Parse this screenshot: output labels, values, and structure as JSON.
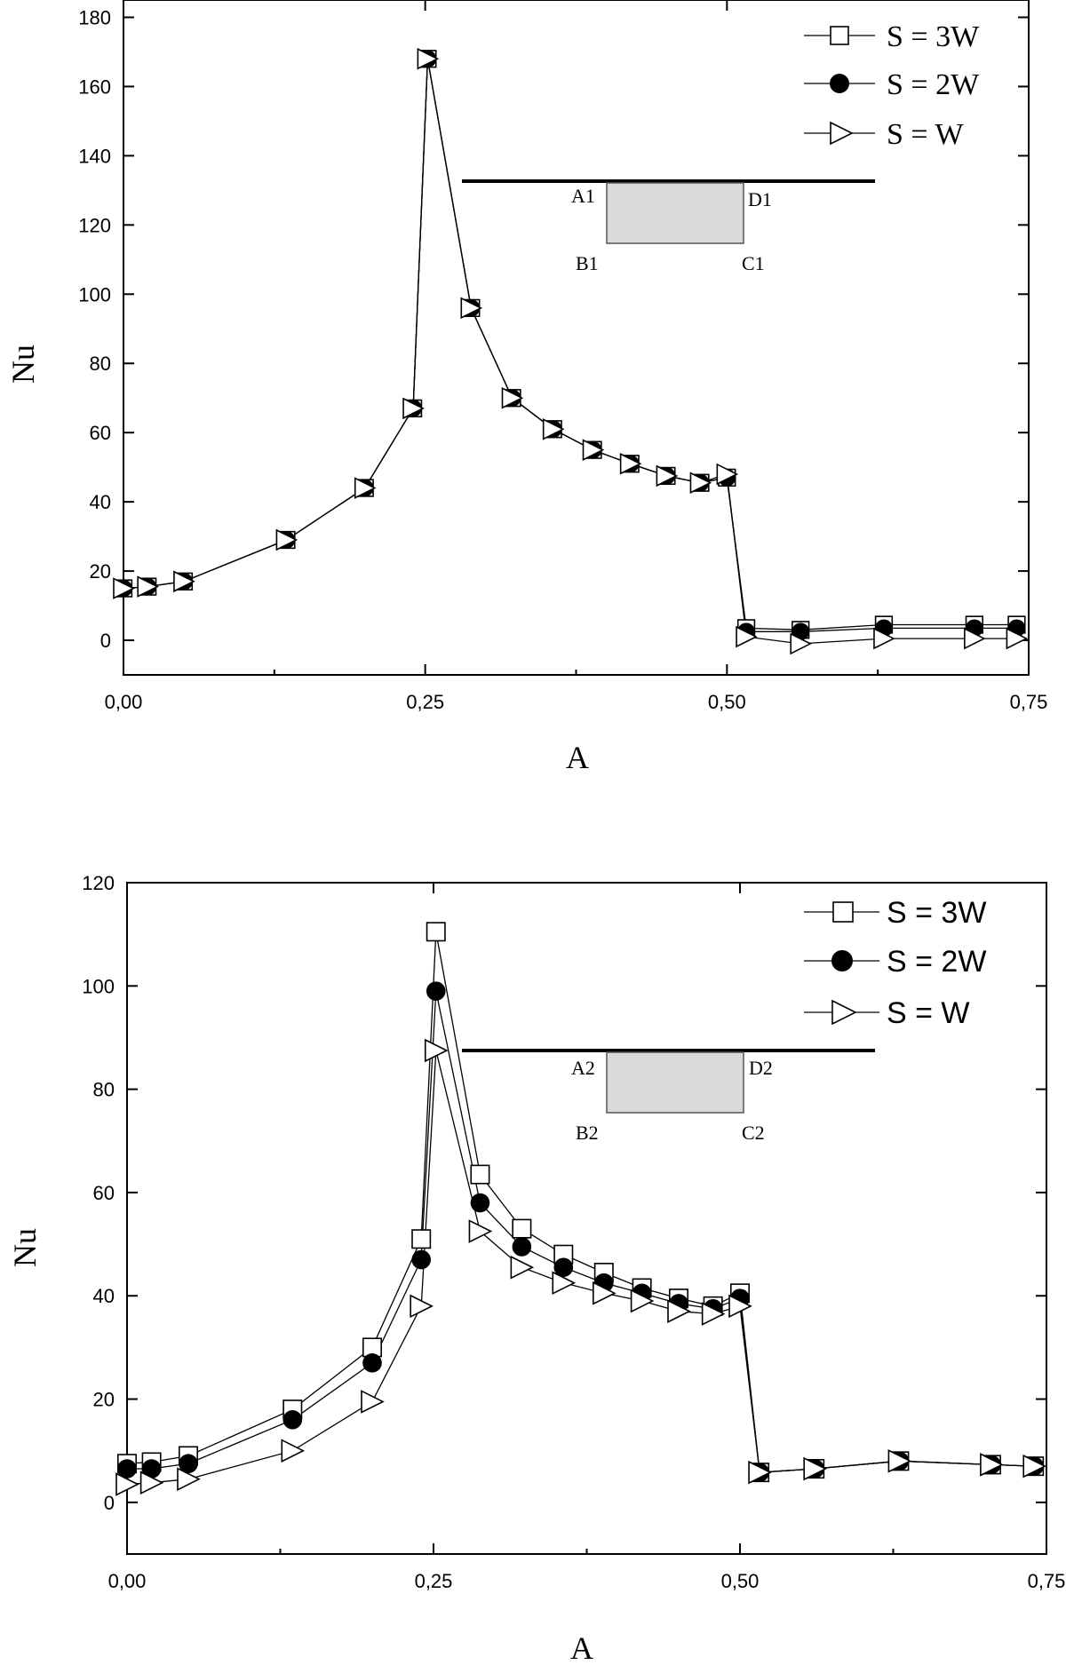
{
  "chart_data": [
    {
      "type": "line",
      "title": "",
      "xlabel": "A",
      "ylabel": "Nu",
      "xlim": [
        0.0,
        0.75
      ],
      "ylim": [
        -10,
        185
      ],
      "xticks": [
        0.0,
        0.25,
        0.5,
        0.75
      ],
      "xtick_labels": [
        "0,00",
        "0,25",
        "0,50",
        "0,75"
      ],
      "yticks": [
        0,
        20,
        40,
        60,
        80,
        100,
        120,
        140,
        160,
        180
      ],
      "ytick_labels": [
        "0",
        "20",
        "40",
        "60",
        "80",
        "100",
        "120",
        "140",
        "160",
        "180"
      ],
      "legend_position": "top-right",
      "inset": {
        "labels": [
          "A1",
          "D1",
          "B1",
          "C1"
        ]
      },
      "series": [
        {
          "name": "S = 3W",
          "marker": "square-open",
          "points": [
            [
              0.0,
              15
            ],
            [
              0.02,
              15.5
            ],
            [
              0.05,
              17
            ],
            [
              0.135,
              29
            ],
            [
              0.2,
              44
            ],
            [
              0.24,
              67
            ],
            [
              0.252,
              168
            ],
            [
              0.288,
              96
            ],
            [
              0.322,
              70
            ],
            [
              0.356,
              61
            ],
            [
              0.389,
              55
            ],
            [
              0.42,
              51
            ],
            [
              0.45,
              47.5
            ],
            [
              0.478,
              45.5
            ],
            [
              0.5,
              47
            ],
            [
              0.516,
              3.5
            ],
            [
              0.561,
              3
            ],
            [
              0.63,
              4.5
            ],
            [
              0.705,
              4.5
            ],
            [
              0.74,
              4.5
            ]
          ]
        },
        {
          "name": "S = 2W",
          "marker": "circle-filled",
          "points": [
            [
              0.0,
              15
            ],
            [
              0.02,
              15.5
            ],
            [
              0.05,
              17
            ],
            [
              0.135,
              29
            ],
            [
              0.2,
              44
            ],
            [
              0.24,
              67
            ],
            [
              0.252,
              168
            ],
            [
              0.288,
              96
            ],
            [
              0.322,
              70
            ],
            [
              0.356,
              61
            ],
            [
              0.389,
              55
            ],
            [
              0.42,
              51
            ],
            [
              0.45,
              47.5
            ],
            [
              0.478,
              45.5
            ],
            [
              0.5,
              47
            ],
            [
              0.516,
              2.5
            ],
            [
              0.561,
              2.5
            ],
            [
              0.63,
              3.5
            ],
            [
              0.705,
              3.5
            ],
            [
              0.74,
              3.5
            ]
          ]
        },
        {
          "name": "S = W",
          "marker": "triangle-right-open",
          "points": [
            [
              0.0,
              15
            ],
            [
              0.02,
              15.5
            ],
            [
              0.05,
              17
            ],
            [
              0.135,
              29
            ],
            [
              0.2,
              44
            ],
            [
              0.24,
              67
            ],
            [
              0.252,
              168
            ],
            [
              0.288,
              96
            ],
            [
              0.322,
              70
            ],
            [
              0.356,
              61
            ],
            [
              0.389,
              55
            ],
            [
              0.42,
              51
            ],
            [
              0.45,
              47.5
            ],
            [
              0.478,
              45.5
            ],
            [
              0.5,
              48
            ],
            [
              0.516,
              1
            ],
            [
              0.561,
              -1
            ],
            [
              0.63,
              0.5
            ],
            [
              0.705,
              0.5
            ],
            [
              0.74,
              0.5
            ]
          ]
        }
      ]
    },
    {
      "type": "line",
      "title": "",
      "xlabel": "A",
      "ylabel": "Nu",
      "xlim": [
        0.0,
        0.75
      ],
      "ylim": [
        -10,
        120
      ],
      "xticks": [
        0.0,
        0.25,
        0.5,
        0.75
      ],
      "xtick_labels": [
        "0,00",
        "0,25",
        "0,50",
        "0,75"
      ],
      "yticks": [
        0,
        20,
        40,
        60,
        80,
        100,
        120
      ],
      "ytick_labels": [
        "0",
        "20",
        "40",
        "60",
        "80",
        "100",
        "120"
      ],
      "legend_position": "top-right",
      "inset": {
        "labels": [
          "A2",
          "D2",
          "B2",
          "C2"
        ]
      },
      "series": [
        {
          "name": "S = 3W",
          "marker": "square-open",
          "points": [
            [
              0.0,
              7.5
            ],
            [
              0.02,
              7.8
            ],
            [
              0.05,
              9
            ],
            [
              0.135,
              18
            ],
            [
              0.2,
              30
            ],
            [
              0.24,
              51
            ],
            [
              0.252,
              110.5
            ],
            [
              0.288,
              63.5
            ],
            [
              0.322,
              53
            ],
            [
              0.356,
              48
            ],
            [
              0.389,
              44.5
            ],
            [
              0.42,
              41.5
            ],
            [
              0.45,
              39.5
            ],
            [
              0.478,
              38
            ],
            [
              0.5,
              40.5
            ],
            [
              0.516,
              5.8
            ],
            [
              0.561,
              6.5
            ],
            [
              0.63,
              8
            ],
            [
              0.705,
              7.3
            ],
            [
              0.74,
              7
            ]
          ]
        },
        {
          "name": "S = 2W",
          "marker": "circle-filled",
          "points": [
            [
              0.0,
              6.5
            ],
            [
              0.02,
              6.5
            ],
            [
              0.05,
              7.5
            ],
            [
              0.135,
              16
            ],
            [
              0.2,
              27
            ],
            [
              0.24,
              47
            ],
            [
              0.252,
              99
            ],
            [
              0.288,
              58
            ],
            [
              0.322,
              49.5
            ],
            [
              0.356,
              45.5
            ],
            [
              0.389,
              42.5
            ],
            [
              0.42,
              40.5
            ],
            [
              0.45,
              38.5
            ],
            [
              0.478,
              37.5
            ],
            [
              0.5,
              39.5
            ],
            [
              0.516,
              5.8
            ],
            [
              0.561,
              6.5
            ],
            [
              0.63,
              8
            ],
            [
              0.705,
              7.3
            ],
            [
              0.74,
              7
            ]
          ]
        },
        {
          "name": "S = W",
          "marker": "triangle-right-open",
          "points": [
            [
              0.0,
              3.5
            ],
            [
              0.02,
              3.8
            ],
            [
              0.05,
              4.5
            ],
            [
              0.135,
              10
            ],
            [
              0.2,
              19.5
            ],
            [
              0.24,
              38
            ],
            [
              0.252,
              87.5
            ],
            [
              0.288,
              52.5
            ],
            [
              0.322,
              45.5
            ],
            [
              0.356,
              42.5
            ],
            [
              0.389,
              40.5
            ],
            [
              0.42,
              39
            ],
            [
              0.45,
              37
            ],
            [
              0.478,
              36.5
            ],
            [
              0.5,
              38
            ],
            [
              0.516,
              5.8
            ],
            [
              0.561,
              6.5
            ],
            [
              0.63,
              8
            ],
            [
              0.705,
              7.3
            ],
            [
              0.74,
              7
            ]
          ]
        }
      ]
    }
  ]
}
